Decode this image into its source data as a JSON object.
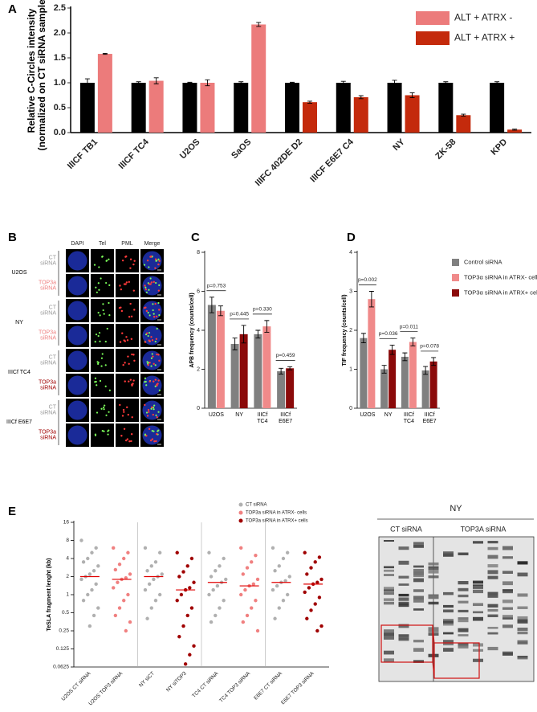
{
  "chart_data": [
    {
      "type": "bar",
      "panel": "A",
      "ylabel": "Relative C-Circles intensity\n(normalized on CT siRNA samples)",
      "categories": [
        "IIICF TB1",
        "IIICF TC4",
        "U2OS",
        "SaOS",
        "IIIFC 402DE D2",
        "IIICF E6E7 C4",
        "NY",
        "ZK-58",
        "KPD"
      ],
      "series": [
        {
          "color": "#000000",
          "values": [
            1.0,
            1.0,
            1.0,
            1.0,
            1.0,
            1.0,
            1.0,
            1.0,
            1.0
          ],
          "errors": [
            0.08,
            0.02,
            0.01,
            0.02,
            0.01,
            0.03,
            0.05,
            0.02,
            0.02
          ]
        },
        {
          "colors": [
            "#ec7b7b",
            "#ec7b7b",
            "#ec7b7b",
            "#ec7b7b",
            "#c42a0c",
            "#c42a0c",
            "#c42a0c",
            "#c42a0c",
            "#c42a0c"
          ],
          "values": [
            1.58,
            1.04,
            1.0,
            2.17,
            0.61,
            0.71,
            0.75,
            0.35,
            0.06
          ],
          "errors": [
            0.01,
            0.06,
            0.06,
            0.04,
            0.02,
            0.03,
            0.05,
            0.02,
            0.01
          ]
        }
      ],
      "legend": [
        {
          "label": "ALT + ATRX -",
          "color": "#ec7b7b"
        },
        {
          "label": "ALT + ATRX +",
          "color": "#c42a0c"
        }
      ],
      "ylim": [
        0,
        2.5
      ],
      "yticks": [
        {
          "value": 0,
          "label": "0.0"
        },
        {
          "value": 0.5,
          "label": "0.5"
        },
        {
          "value": 1,
          "label": "1.0"
        },
        {
          "value": 1.5,
          "label": "1.5"
        },
        {
          "value": 2,
          "label": "2.0"
        },
        {
          "value": 2.5,
          "label": "2.5"
        }
      ]
    },
    {
      "type": "bar",
      "panel": "C",
      "ylabel": "APB frequency (counts/cell)",
      "categories": [
        "U2OS",
        "NY",
        "IIICf\nTC4",
        "IIICf\nE6E7"
      ],
      "series": [
        {
          "color": "#808080",
          "values": [
            5.3,
            3.3,
            3.8,
            1.9
          ],
          "errors": [
            0.4,
            0.3,
            0.2,
            0.15
          ]
        },
        {
          "colors": [
            "#f08a8a",
            "#8b0a0a",
            "#f08a8a",
            "#8b0a0a"
          ],
          "values": [
            5.0,
            3.8,
            4.2,
            2.05
          ],
          "errors": [
            0.25,
            0.45,
            0.3,
            0.08
          ]
        }
      ],
      "annotations": [
        "p=0.753",
        "p=0.445",
        "p=0.330",
        "p=0.459"
      ],
      "ylim": [
        0,
        8
      ],
      "yticks": [
        0,
        2,
        4,
        6,
        8
      ]
    },
    {
      "type": "bar",
      "panel": "D",
      "ylabel": "TIF frequency (counts/cell)",
      "categories": [
        "U2OS",
        "NY",
        "IIICf\nTC4",
        "IIICf\nE6E7"
      ],
      "series": [
        {
          "color": "#808080",
          "values": [
            1.8,
            1.0,
            1.32,
            0.97
          ],
          "errors": [
            0.12,
            0.1,
            0.1,
            0.1
          ]
        },
        {
          "colors": [
            "#f08a8a",
            "#8b0a0a",
            "#f08a8a",
            "#8b0a0a"
          ],
          "values": [
            2.8,
            1.5,
            1.7,
            1.2
          ],
          "errors": [
            0.2,
            0.12,
            0.1,
            0.1
          ]
        }
      ],
      "annotations": [
        "p=0.002",
        "p=0.036",
        "p=0.011",
        "p=0.078"
      ],
      "legend": [
        {
          "label": "Control siRNA",
          "color": "#808080"
        },
        {
          "label": "TOP3α siRNA in ATRX- cells",
          "color": "#f08a8a"
        },
        {
          "label": "TOP3α siRNA in ATRX+ cells",
          "color": "#8b0a0a"
        }
      ],
      "ylim": [
        0,
        4
      ],
      "yticks": [
        0,
        1,
        2,
        3,
        4
      ]
    },
    {
      "type": "dot",
      "panel": "E",
      "ylabel": "TeSLA fragment lenght (kb)",
      "categories": [
        "U2OS CT siRNA",
        "U2OS TOP3 siRNA",
        "NY siCT",
        "NY siTOP3",
        "TC4 CT siRNA",
        "TC4 TOP3 siRNA",
        "E6E7 CT siRNA",
        "E6E7 TOP3 siRNA"
      ],
      "colors": [
        "#b0b0b0",
        "#f08080",
        "#b0b0b0",
        "#a00000",
        "#b0b0b0",
        "#f08080",
        "#b0b0b0",
        "#a00000"
      ],
      "values": [
        [
          8,
          6,
          5,
          4,
          3.5,
          3,
          2.5,
          2.2,
          2,
          1.8,
          1.5,
          1.2,
          1,
          0.8,
          0.6,
          0.45,
          0.3
        ],
        [
          6,
          5,
          4,
          3.2,
          2.6,
          2.2,
          1.9,
          1.8,
          1.6,
          1.3,
          1,
          0.8,
          0.6,
          0.45,
          0.35,
          0.25
        ],
        [
          6,
          5,
          3.5,
          3,
          2.5,
          2.2,
          2,
          1.8,
          1.5,
          1.2,
          1,
          0.8,
          0.6,
          0.4
        ],
        [
          5,
          4,
          3,
          2.4,
          2,
          1.6,
          1.3,
          1.2,
          1,
          0.8,
          0.6,
          0.45,
          0.3,
          0.2,
          0.14,
          0.1,
          0.07
        ],
        [
          5,
          4,
          3,
          2.5,
          2,
          1.8,
          1.6,
          1.4,
          1.2,
          1,
          0.8,
          0.6,
          0.45,
          0.35
        ],
        [
          6,
          4.5,
          3.5,
          2.8,
          2.2,
          1.8,
          1.5,
          1.4,
          1.2,
          1,
          0.8,
          0.6,
          0.45,
          0.35,
          0.25
        ],
        [
          6,
          5,
          4,
          3,
          2.5,
          2,
          1.7,
          1.6,
          1.4,
          1.2,
          1,
          0.8,
          0.6,
          0.4
        ],
        [
          5,
          4.2,
          3.5,
          2.8,
          2.2,
          1.8,
          1.6,
          1.5,
          1.3,
          1.1,
          0.9,
          0.7,
          0.55,
          0.4,
          0.3,
          0.25
        ]
      ],
      "medians": [
        2,
        1.8,
        2,
        1.2,
        1.6,
        1.4,
        1.6,
        1.5
      ],
      "legend": [
        {
          "label": "CT siRNA",
          "color": "#b0b0b0"
        },
        {
          "label": "TOP3a siRNA in ATRX- cells",
          "color": "#f08080"
        },
        {
          "label": "TOP3a siRNA in ATRX+ cells",
          "color": "#a00000"
        }
      ],
      "log_scale": true,
      "ylim": [
        0.0625,
        16
      ],
      "yticks": [
        0.0625,
        0.125,
        0.25,
        0.5,
        1,
        2,
        4,
        8,
        16
      ]
    }
  ],
  "panel_b": {
    "panel": "B",
    "columns": [
      {
        "label": "DAPI",
        "color": "#2b2bd6"
      },
      {
        "label": "Tel",
        "color": "#3fa535"
      },
      {
        "label": "PML",
        "color": "#e02020"
      },
      {
        "label": "Merge",
        "color": "#000000"
      }
    ],
    "rows": [
      {
        "label": "U2OS",
        "conditions": [
          {
            "label": "CT\nsiRNA",
            "color": "#999999"
          },
          {
            "label": "TOP3a\nsiRNA",
            "color": "#ef7f7f"
          }
        ]
      },
      {
        "label": "NY",
        "conditions": [
          {
            "label": "CT\nsiRNA",
            "color": "#999999"
          },
          {
            "label": "TOP3a\nsiRNA",
            "color": "#ef7f7f"
          }
        ]
      },
      {
        "label": "IIICf TC4",
        "conditions": [
          {
            "label": "CT\nsiRNA",
            "color": "#999999"
          },
          {
            "label": "TOP3a\nsiRNA",
            "color": "#a00000"
          }
        ]
      },
      {
        "label": "IIICf E6E7",
        "conditions": [
          {
            "label": "CT\nsiRNA",
            "color": "#999999"
          },
          {
            "label": "TOP3a\nsiRNA",
            "color": "#a00000"
          }
        ]
      }
    ]
  },
  "gel": {
    "title": "NY",
    "lanes": [
      "CT siRNA",
      "TOP3A siRNA"
    ]
  }
}
